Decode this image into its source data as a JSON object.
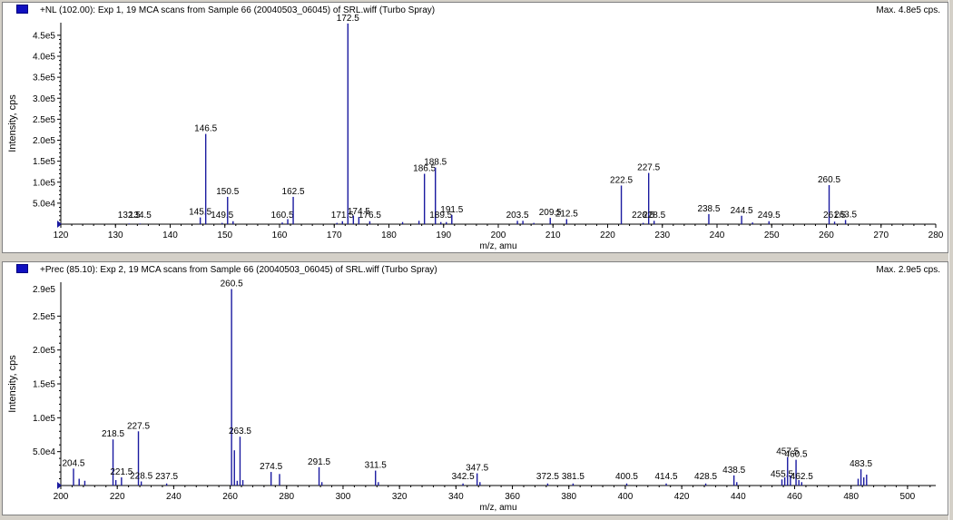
{
  "colors": {
    "peak": "#1a1aa0",
    "axis": "#000000",
    "label": "#000000",
    "marker": "#1010c0"
  },
  "chart_data": [
    {
      "type": "bar",
      "title": "+NL (102.00): Exp 1, 19 MCA scans from Sample 66 (20040503_06045) of SRL.wiff (Turbo Spray)",
      "max_label": "Max. 4.8e5 cps.",
      "xlabel": "m/z, amu",
      "ylabel": "Intensity, cps",
      "xlim": [
        120,
        280
      ],
      "ylim": [
        0,
        480000
      ],
      "xticks": [
        120,
        130,
        140,
        150,
        160,
        170,
        180,
        190,
        200,
        210,
        220,
        230,
        240,
        250,
        260,
        270,
        280
      ],
      "yticks": [
        50000,
        100000,
        150000,
        200000,
        250000,
        300000,
        350000,
        400000,
        450000
      ],
      "ytick_labels": [
        "5.0e4",
        "1.0e5",
        "1.5e5",
        "2.0e5",
        "2.5e5",
        "3.0e5",
        "3.5e5",
        "4.0e5",
        "4.5e5"
      ],
      "peaks": [
        {
          "x": 132.5,
          "y": 1500,
          "label": "132.5"
        },
        {
          "x": 134.5,
          "y": 1500,
          "label": "134.5"
        },
        {
          "x": 145.5,
          "y": 16000,
          "label": "145.5"
        },
        {
          "x": 146.5,
          "y": 215000,
          "label": "146.5"
        },
        {
          "x": 149.5,
          "y": 3000,
          "label": "149.5"
        },
        {
          "x": 150.5,
          "y": 65000,
          "label": "150.5"
        },
        {
          "x": 151.5,
          "y": 7000
        },
        {
          "x": 160.5,
          "y": 4000,
          "label": "160.5"
        },
        {
          "x": 161.5,
          "y": 12000
        },
        {
          "x": 162.5,
          "y": 65000,
          "label": "162.5"
        },
        {
          "x": 170.5,
          "y": 3000
        },
        {
          "x": 171.5,
          "y": 7000,
          "label": "171.5"
        },
        {
          "x": 172.5,
          "y": 478000,
          "label": "172.5"
        },
        {
          "x": 173.5,
          "y": 20000
        },
        {
          "x": 174.5,
          "y": 17000,
          "label": "174.5"
        },
        {
          "x": 176.5,
          "y": 7000,
          "label": "176.5"
        },
        {
          "x": 182.5,
          "y": 5000
        },
        {
          "x": 185.5,
          "y": 8000
        },
        {
          "x": 186.5,
          "y": 120000,
          "label": "186.5"
        },
        {
          "x": 188.5,
          "y": 135000,
          "label": "188.5"
        },
        {
          "x": 189.5,
          "y": 5000,
          "label": "189.5"
        },
        {
          "x": 190.5,
          "y": 5000
        },
        {
          "x": 191.5,
          "y": 22000,
          "label": "191.5"
        },
        {
          "x": 203.5,
          "y": 8000,
          "label": "203.5"
        },
        {
          "x": 204.5,
          "y": 8000
        },
        {
          "x": 206.5,
          "y": 3000
        },
        {
          "x": 209.5,
          "y": 15000,
          "label": "209.5"
        },
        {
          "x": 212.5,
          "y": 12000,
          "label": "212.5"
        },
        {
          "x": 222.5,
          "y": 92000,
          "label": "222.5"
        },
        {
          "x": 226.5,
          "y": 3000,
          "label": "226.5"
        },
        {
          "x": 227.5,
          "y": 122000,
          "label": "227.5"
        },
        {
          "x": 228.5,
          "y": 8000,
          "label": "228.5"
        },
        {
          "x": 238.5,
          "y": 24000,
          "label": "238.5"
        },
        {
          "x": 244.5,
          "y": 20000,
          "label": "244.5"
        },
        {
          "x": 246.5,
          "y": 4000
        },
        {
          "x": 249.5,
          "y": 7000,
          "label": "249.5"
        },
        {
          "x": 260.5,
          "y": 93000,
          "label": "260.5"
        },
        {
          "x": 261.5,
          "y": 6000,
          "label": "261.5"
        },
        {
          "x": 263.5,
          "y": 10000,
          "label": "263.5"
        }
      ]
    },
    {
      "type": "bar",
      "title": "+Prec (85.10): Exp 2, 19 MCA scans from Sample 66 (20040503_06045) of SRL.wiff (Turbo Spray)",
      "max_label": "Max. 2.9e5 cps.",
      "xlabel": "m/z, amu",
      "ylabel": "Intensity, cps",
      "xlim": [
        200,
        510
      ],
      "ylim": [
        0,
        300000
      ],
      "xticks": [
        200,
        220,
        240,
        260,
        280,
        300,
        320,
        340,
        360,
        380,
        400,
        420,
        440,
        460,
        480,
        500
      ],
      "yticks": [
        50000,
        100000,
        150000,
        200000,
        250000
      ],
      "ytick_labels": [
        "5.0e4",
        "1.0e5",
        "1.5e5",
        "2.0e5",
        "2.5e5"
      ],
      "top_label": "2.9e5",
      "peaks": [
        {
          "x": 204.5,
          "y": 25000,
          "label": "204.5"
        },
        {
          "x": 206.5,
          "y": 10000
        },
        {
          "x": 208.5,
          "y": 7000
        },
        {
          "x": 218.5,
          "y": 68000,
          "label": "218.5"
        },
        {
          "x": 219.5,
          "y": 8000
        },
        {
          "x": 221.5,
          "y": 12000,
          "label": "221.5"
        },
        {
          "x": 227.5,
          "y": 80000,
          "label": "227.5"
        },
        {
          "x": 228.5,
          "y": 6000,
          "label": "228.5"
        },
        {
          "x": 237.5,
          "y": 3000,
          "label": "237.5"
        },
        {
          "x": 260.5,
          "y": 290000,
          "label": "260.5"
        },
        {
          "x": 261.5,
          "y": 52000
        },
        {
          "x": 262.5,
          "y": 7000
        },
        {
          "x": 263.5,
          "y": 72000,
          "label": "263.5"
        },
        {
          "x": 264.5,
          "y": 8000
        },
        {
          "x": 274.5,
          "y": 20000,
          "label": "274.5"
        },
        {
          "x": 277.5,
          "y": 17000
        },
        {
          "x": 291.5,
          "y": 27000,
          "label": "291.5"
        },
        {
          "x": 292.5,
          "y": 5000
        },
        {
          "x": 311.5,
          "y": 22000,
          "label": "311.5"
        },
        {
          "x": 312.5,
          "y": 5000
        },
        {
          "x": 342.5,
          "y": 3000,
          "label": "342.5"
        },
        {
          "x": 347.5,
          "y": 18000,
          "label": "347.5"
        },
        {
          "x": 348.5,
          "y": 5000
        },
        {
          "x": 372.5,
          "y": 3000,
          "label": "372.5"
        },
        {
          "x": 381.5,
          "y": 3000,
          "label": "381.5"
        },
        {
          "x": 400.5,
          "y": 3000,
          "label": "400.5"
        },
        {
          "x": 414.5,
          "y": 3000,
          "label": "414.5"
        },
        {
          "x": 428.5,
          "y": 3000,
          "label": "428.5"
        },
        {
          "x": 438.5,
          "y": 15000,
          "label": "438.5"
        },
        {
          "x": 439.5,
          "y": 5000
        },
        {
          "x": 455.5,
          "y": 9000,
          "label": "455.5"
        },
        {
          "x": 456.5,
          "y": 12000
        },
        {
          "x": 457.5,
          "y": 42000,
          "label": "457.5"
        },
        {
          "x": 458.5,
          "y": 15000
        },
        {
          "x": 460.5,
          "y": 38000,
          "label": "460.5"
        },
        {
          "x": 461.5,
          "y": 8000
        },
        {
          "x": 462.5,
          "y": 5000,
          "label": "462.5"
        },
        {
          "x": 482.5,
          "y": 10000
        },
        {
          "x": 483.5,
          "y": 24000,
          "label": "483.5"
        },
        {
          "x": 484.5,
          "y": 12000
        },
        {
          "x": 485.5,
          "y": 16000
        }
      ]
    }
  ]
}
